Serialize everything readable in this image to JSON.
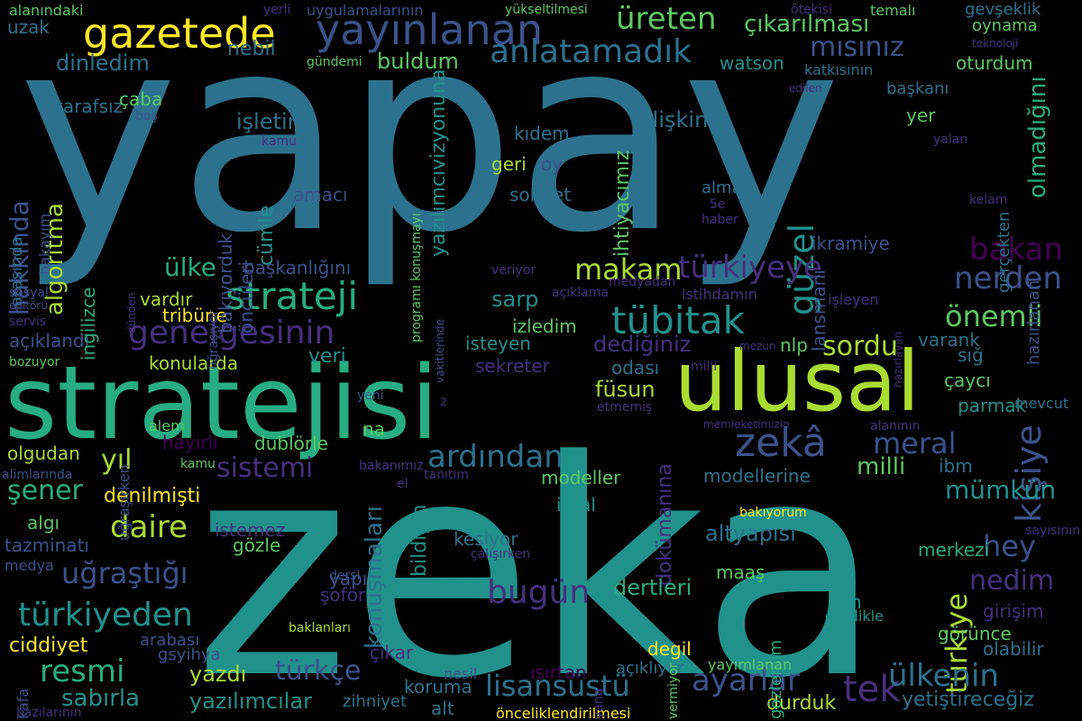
{
  "palette": {
    "background": "#000000",
    "c1": "#46307e",
    "c2": "#3b528b",
    "c3": "#2c728e",
    "c4": "#21918c",
    "c5": "#27ad81",
    "c6": "#5cc863",
    "c7": "#aadc32",
    "c8": "#fde725",
    "c0": "#440154"
  },
  "words": [
    {
      "text": "yapay",
      "color": "c3"
    },
    {
      "text": "zeka",
      "color": "c4"
    },
    {
      "text": "stratejisi",
      "color": "c5"
    },
    {
      "text": "ulusal",
      "color": "c7"
    },
    {
      "text": "gazetede",
      "color": "c8"
    },
    {
      "text": "yayınlanan",
      "color": "c2"
    },
    {
      "text": "strateji",
      "color": "c5"
    },
    {
      "text": "tübitak",
      "color": "c4"
    },
    {
      "text": "zekâ",
      "color": "c2"
    },
    {
      "text": "genelgesinin",
      "color": "c1"
    },
    {
      "text": "anlatamadık",
      "color": "c3"
    },
    {
      "text": "üreten",
      "color": "c6"
    },
    {
      "text": "çıkarılması",
      "color": "c6"
    },
    {
      "text": "mısınız",
      "color": "c2"
    },
    {
      "text": "güzel",
      "color": "c4"
    },
    {
      "text": "makam",
      "color": "c7"
    },
    {
      "text": "türkiyeye",
      "color": "c1"
    },
    {
      "text": "bakan",
      "color": "c0"
    },
    {
      "text": "nerden",
      "color": "c2"
    },
    {
      "text": "önemli",
      "color": "c6"
    },
    {
      "text": "sordu",
      "color": "c7"
    },
    {
      "text": "kişiye",
      "color": "c2"
    },
    {
      "text": "meral",
      "color": "c2"
    },
    {
      "text": "ardından",
      "color": "c3"
    },
    {
      "text": "sistemi",
      "color": "c1"
    },
    {
      "text": "milli",
      "color": "c6"
    },
    {
      "text": "mümkün",
      "color": "c4"
    },
    {
      "text": "hey",
      "color": "c2"
    },
    {
      "text": "nedim",
      "color": "c1"
    },
    {
      "text": "türkiye",
      "color": "c7"
    },
    {
      "text": "olmadığını",
      "color": "c5"
    },
    {
      "text": "hakkında",
      "color": "c2"
    },
    {
      "text": "algoritma",
      "color": "c7"
    },
    {
      "text": "ülke",
      "color": "c5"
    },
    {
      "text": "yıl",
      "color": "c7"
    },
    {
      "text": "şener",
      "color": "c5"
    },
    {
      "text": "daire",
      "color": "c7"
    },
    {
      "text": "uğraştığı",
      "color": "c2"
    },
    {
      "text": "türkiyeden",
      "color": "c4"
    },
    {
      "text": "resmi",
      "color": "c5"
    },
    {
      "text": "türkçe",
      "color": "c2"
    },
    {
      "text": "lisansüstü",
      "color": "c3"
    },
    {
      "text": "ayarlar",
      "color": "c2"
    },
    {
      "text": "tek",
      "color": "c1"
    },
    {
      "text": "ülkenin",
      "color": "c3"
    },
    {
      "text": "bugün",
      "color": "c1"
    },
    {
      "text": "konuşmaları",
      "color": "c3"
    },
    {
      "text": "dinledim",
      "color": "c3"
    },
    {
      "text": "buldum",
      "color": "c6"
    },
    {
      "text": "nebil",
      "color": "c3"
    },
    {
      "text": "işletim",
      "color": "c3"
    },
    {
      "text": "cümle",
      "color": "c4"
    },
    {
      "text": "ilişkin",
      "color": "c3"
    },
    {
      "text": "yazılımcıvizyonuna",
      "color": "c4"
    },
    {
      "text": "ihtiyacımız",
      "color": "c6"
    },
    {
      "text": "sarp",
      "color": "c4"
    },
    {
      "text": "dediğiniz",
      "color": "c1"
    },
    {
      "text": "füsun",
      "color": "c7"
    },
    {
      "text": "altyapısı",
      "color": "c3"
    },
    {
      "text": "dokümanına",
      "color": "c1"
    },
    {
      "text": "dertleri",
      "color": "c5"
    },
    {
      "text": "yazdı",
      "color": "c7"
    },
    {
      "text": "sabırla",
      "color": "c4"
    },
    {
      "text": "yazılımcılar",
      "color": "c4"
    },
    {
      "text": "durduk",
      "color": "c7"
    },
    {
      "text": "yetiştireceğiz",
      "color": "c3"
    },
    {
      "text": "denilmişti",
      "color": "c8"
    },
    {
      "text": "ciddiyet",
      "color": "c8"
    },
    {
      "text": "konularda",
      "color": "c7"
    },
    {
      "text": "dublörle",
      "color": "c6"
    },
    {
      "text": "hayırlı",
      "color": "c0"
    },
    {
      "text": "veri",
      "color": "c4"
    },
    {
      "text": "vardır",
      "color": "c7"
    },
    {
      "text": "tribüne",
      "color": "c8"
    },
    {
      "text": "açıklandı",
      "color": "c2"
    },
    {
      "text": "başkanlığını",
      "color": "c2"
    },
    {
      "text": "bakıyorduk",
      "color": "c2"
    },
    {
      "text": "öncüleri",
      "color": "c2"
    },
    {
      "text": "amacı",
      "color": "c2"
    },
    {
      "text": "kıdem",
      "color": "c3"
    },
    {
      "text": "geri",
      "color": "c7"
    },
    {
      "text": "oy",
      "color": "c2"
    },
    {
      "text": "sohbet",
      "color": "c3"
    },
    {
      "text": "almak",
      "color": "c3"
    },
    {
      "text": "lansmanı",
      "color": "c2"
    },
    {
      "text": "ikramiye",
      "color": "c2"
    },
    {
      "text": "izledim",
      "color": "c6"
    },
    {
      "text": "isteyen",
      "color": "c4"
    },
    {
      "text": "sekreter",
      "color": "c1"
    },
    {
      "text": "odası",
      "color": "c3"
    },
    {
      "text": "nlp",
      "color": "c6"
    },
    {
      "text": "varank",
      "color": "c3"
    },
    {
      "text": "sığ",
      "color": "c3"
    },
    {
      "text": "çaycı",
      "color": "c6"
    },
    {
      "text": "parmak",
      "color": "c4"
    },
    {
      "text": "ibm",
      "color": "c3"
    },
    {
      "text": "modellerine",
      "color": "c3"
    },
    {
      "text": "modeller",
      "color": "c6"
    },
    {
      "text": "ithal",
      "color": "c4"
    },
    {
      "text": "kesiyor",
      "color": "c3"
    },
    {
      "text": "maaş",
      "color": "c6"
    },
    {
      "text": "degil",
      "color": "c8"
    },
    {
      "text": "gözlemim",
      "color": "c5"
    },
    {
      "text": "min",
      "color": "c4"
    },
    {
      "text": "merkezi",
      "color": "c5"
    },
    {
      "text": "girişim",
      "color": "c1"
    },
    {
      "text": "görünce",
      "color": "c6"
    },
    {
      "text": "olabilir",
      "color": "c3"
    },
    {
      "text": "watson",
      "color": "c4"
    },
    {
      "text": "oturdum",
      "color": "c6"
    },
    {
      "text": "başkanı",
      "color": "c3"
    },
    {
      "text": "yer",
      "color": "c6"
    },
    {
      "text": "gevşeklik",
      "color": "c3"
    },
    {
      "text": "uzak",
      "color": "c3"
    },
    {
      "text": "tarafsız",
      "color": "c3"
    },
    {
      "text": "çaba",
      "color": "c6"
    },
    {
      "text": "arasında",
      "color": "c3"
    },
    {
      "text": "bakayım",
      "color": "c2"
    },
    {
      "text": "ingilizce",
      "color": "c5"
    },
    {
      "text": "algı",
      "color": "c6"
    },
    {
      "text": "tazminatı",
      "color": "c2"
    },
    {
      "text": "medya",
      "color": "c2"
    },
    {
      "text": "olgudan",
      "color": "c7"
    },
    {
      "text": "istemez",
      "color": "c1"
    },
    {
      "text": "gözle",
      "color": "c6"
    },
    {
      "text": "yapı",
      "color": "c2"
    },
    {
      "text": "şoför",
      "color": "c1"
    },
    {
      "text": "arabası",
      "color": "c2"
    },
    {
      "text": "gsyihya",
      "color": "c2"
    },
    {
      "text": "çıkar",
      "color": "c1"
    },
    {
      "text": "ısırtan",
      "color": "c0"
    },
    {
      "text": "koruma",
      "color": "c3"
    },
    {
      "text": "alt",
      "color": "c3"
    },
    {
      "text": "açıklıyor",
      "color": "c3"
    },
    {
      "text": "yayımlanan",
      "color": "c6"
    },
    {
      "text": "nesil",
      "color": "c2"
    },
    {
      "text": "zihniyet",
      "color": "c3"
    },
    {
      "text": "kafa",
      "color": "c2"
    },
    {
      "text": "bazılarının",
      "color": "c1"
    },
    {
      "text": "önceliklendirilmesi",
      "color": "c8"
    },
    {
      "text": "baklanları",
      "color": "c7"
    },
    {
      "text": "özellikle",
      "color": "c4"
    },
    {
      "text": "bakıyorum",
      "color": "c8"
    },
    {
      "text": "yana",
      "color": "c1"
    },
    {
      "text": "vermiyor",
      "color": "c6"
    },
    {
      "text": "el",
      "color": "c1"
    },
    {
      "text": "dersi",
      "color": "c2"
    },
    {
      "text": "çalışırken",
      "color": "c1"
    },
    {
      "text": "bakanımız",
      "color": "c1"
    },
    {
      "text": "tanıtım",
      "color": "c1"
    },
    {
      "text": "memleketimizin",
      "color": "c1"
    },
    {
      "text": "alanının",
      "color": "c1"
    },
    {
      "text": "etmemiş",
      "color": "c1"
    },
    {
      "text": "mevcut",
      "color": "c3"
    },
    {
      "text": "sayısının",
      "color": "c1"
    },
    {
      "text": "mezun",
      "color": "c1"
    },
    {
      "text": "milli",
      "color": "c1"
    },
    {
      "text": "istihdamın",
      "color": "c1"
    },
    {
      "text": "işleyen",
      "color": "c1"
    },
    {
      "text": "açıklama",
      "color": "c1"
    },
    {
      "text": "veriyor",
      "color": "c1"
    },
    {
      "text": "medyadan",
      "color": "c1"
    },
    {
      "text": "haber",
      "color": "c1"
    },
    {
      "text": "5e",
      "color": "c1"
    },
    {
      "text": "kelam",
      "color": "c1"
    },
    {
      "text": "hazırlayan",
      "color": "c1"
    },
    {
      "text": "hazırlanan",
      "color": "c2"
    },
    {
      "text": "gerçekten",
      "color": "c3"
    },
    {
      "text": "yalan",
      "color": "c1"
    },
    {
      "text": "edilen",
      "color": "c1"
    },
    {
      "text": "teknoloji",
      "color": "c1"
    },
    {
      "text": "oynama",
      "color": "c6"
    },
    {
      "text": "yükseltilmesi",
      "color": "c6"
    },
    {
      "text": "ötekisi",
      "color": "c1"
    },
    {
      "text": "temalı",
      "color": "c6"
    },
    {
      "text": "yerli",
      "color": "c1"
    },
    {
      "text": "uygulamalarının",
      "color": "c2"
    },
    {
      "text": "alanındaki",
      "color": "c6"
    },
    {
      "text": "katkısının",
      "color": "c3"
    },
    {
      "text": "gündemi",
      "color": "c6"
    },
    {
      "text": "boş",
      "color": "c2"
    },
    {
      "text": "dünden",
      "color": "c1"
    },
    {
      "text": "uğraşıyor",
      "color": "c2"
    },
    {
      "text": "programı konuşmayı",
      "color": "c6"
    },
    {
      "text": "vakitlerinde",
      "color": "c2"
    },
    {
      "text": "servis",
      "color": "c1"
    },
    {
      "text": "sosyal",
      "color": "c2"
    },
    {
      "text": "editörü",
      "color": "c2"
    },
    {
      "text": "bozuyor",
      "color": "c6"
    },
    {
      "text": "uğraşırken",
      "color": "c2"
    },
    {
      "text": "yeni",
      "color": "c2"
    },
    {
      "text": "alem",
      "color": "c6"
    },
    {
      "text": "na",
      "color": "c6"
    },
    {
      "text": "bildiğin",
      "color": "c4"
    },
    {
      "text": "2",
      "color": "c1"
    },
    {
      "text": "kamu",
      "color": "c6"
    },
    {
      "text": "alimlarında",
      "color": "c2"
    },
    {
      "text": "kamu",
      "color": "c1"
    }
  ]
}
